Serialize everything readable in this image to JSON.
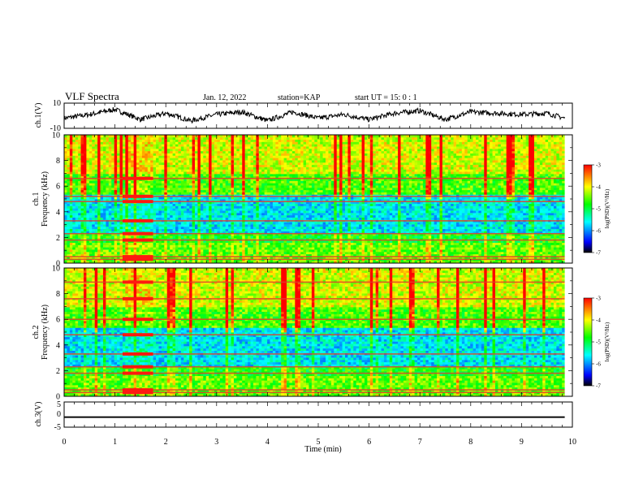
{
  "header": {
    "title": "VLF Spectra",
    "date": "Jan. 12, 2022",
    "station": "station=KAP",
    "start": "start UT =  15: 0  : 1"
  },
  "chart_data": [
    {
      "type": "line",
      "panel": "ch1-waveform",
      "ylabel": "ch.1(V)",
      "ylim": [
        -10,
        10
      ],
      "yticks": [
        "10",
        "-10"
      ],
      "xlim": [
        0,
        10
      ],
      "x": [
        0.0,
        0.5,
        1.0,
        1.5,
        2.0,
        2.5,
        3.0,
        3.5,
        4.0,
        4.5,
        5.0,
        5.5,
        6.0,
        6.5,
        7.0,
        7.5,
        8.0,
        8.5,
        9.0,
        9.5,
        9.85
      ],
      "values": [
        -2,
        1,
        5,
        -3,
        2,
        -4,
        1,
        3,
        -4,
        3,
        -2,
        1,
        -3,
        2,
        4,
        -3,
        3,
        2,
        1,
        2,
        -2
      ]
    },
    {
      "type": "heatmap",
      "panel": "ch1-spectrogram",
      "ylabel": "ch.1\nFrequency (kHz)",
      "ylim": [
        0,
        10
      ],
      "yticks": [
        "0",
        "2",
        "4",
        "6",
        "8",
        "10"
      ],
      "xlim": [
        0,
        10
      ],
      "data_end_min": 9.85,
      "colorbar": {
        "label": "log(PSD)(V²/Hz)",
        "range": [
          -7,
          -3
        ],
        "ticks": [
          "-3",
          "-4",
          "-5",
          "-6",
          "-7"
        ]
      },
      "intense_lines_khz": [
        0.3,
        0.5,
        1.8,
        2.3,
        3.3,
        4.8,
        5.2,
        6.6
      ],
      "transient_event_min": [
        1.15,
        1.75
      ]
    },
    {
      "type": "heatmap",
      "panel": "ch2-spectrogram",
      "ylabel": "ch.2\nFrequency (kHz)",
      "ylim": [
        0,
        10
      ],
      "yticks": [
        "0",
        "2",
        "4",
        "6",
        "8",
        "10"
      ],
      "xlim": [
        0,
        10
      ],
      "data_end_min": 9.85,
      "colorbar": {
        "label": "log(PSD)(V²/Hz)",
        "range": [
          -7,
          -3
        ],
        "ticks": [
          "-3",
          "-4",
          "-5",
          "-6",
          "-7"
        ]
      },
      "intense_lines_khz": [
        0.3,
        0.5,
        1.8,
        2.3,
        3.3,
        4.8,
        6.0,
        7.6,
        8.9
      ],
      "transient_event_min": [
        1.15,
        1.75
      ]
    },
    {
      "type": "line",
      "panel": "ch3-waveform",
      "ylabel": "ch.3(V)",
      "ylim": [
        -5,
        5
      ],
      "yticks": [
        "5",
        "0",
        "-5"
      ],
      "xlim": [
        0,
        10
      ],
      "x": [
        0,
        9.85
      ],
      "values": [
        -1,
        -1
      ],
      "band": [
        -1.3,
        -0.7
      ]
    }
  ],
  "x_axis": {
    "label": "Time (min)",
    "ticks": [
      "0",
      "1",
      "2",
      "3",
      "4",
      "5",
      "6",
      "7",
      "8",
      "9",
      "10"
    ]
  },
  "colors": {
    "psd_scale": [
      "#000000",
      "#0000ff",
      "#00ffff",
      "#00ff00",
      "#ffff00",
      "#ff0000"
    ],
    "line": "#000000"
  }
}
